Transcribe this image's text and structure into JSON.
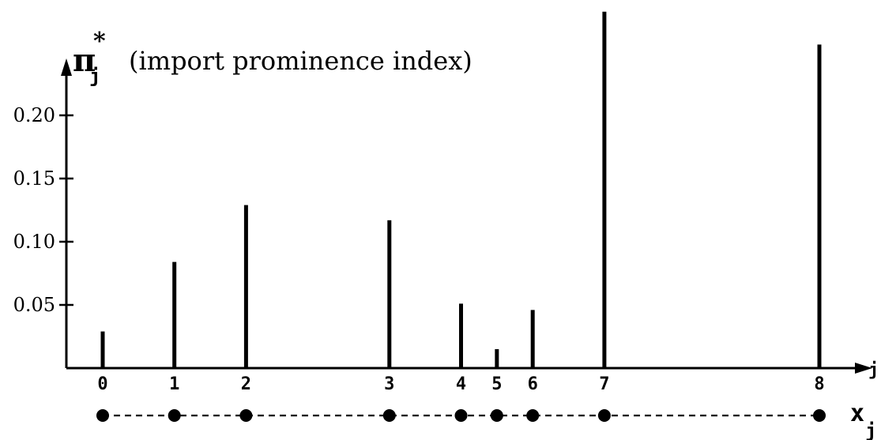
{
  "chart_data": {
    "type": "bar",
    "title": "(import prominence index)",
    "ylabel_symbol": "π",
    "ylabel_superscript": "*",
    "ylabel_subscript": "j",
    "xlabel": "j",
    "bottom_axis_label": "x",
    "bottom_axis_subscript": "j",
    "categories": [
      "0",
      "1",
      "2",
      "3",
      "4",
      "5",
      "6",
      "7",
      "8"
    ],
    "x_positions": [
      0,
      1,
      2,
      4,
      5,
      5.5,
      6,
      7,
      10
    ],
    "values": [
      0.029,
      0.084,
      0.129,
      0.117,
      0.051,
      0.015,
      0.046,
      0.282,
      0.256
    ],
    "yticks": [
      "0.05",
      "0.10",
      "0.15",
      "0.20"
    ],
    "ytick_values": [
      0.05,
      0.1,
      0.15,
      0.2
    ],
    "ylim": [
      0,
      0.29
    ],
    "xlim": [
      -0.5,
      10.5
    ],
    "grid": false,
    "colors": {
      "bar": "#000000",
      "axis": "#000000",
      "dashed_line": "#000000"
    }
  }
}
